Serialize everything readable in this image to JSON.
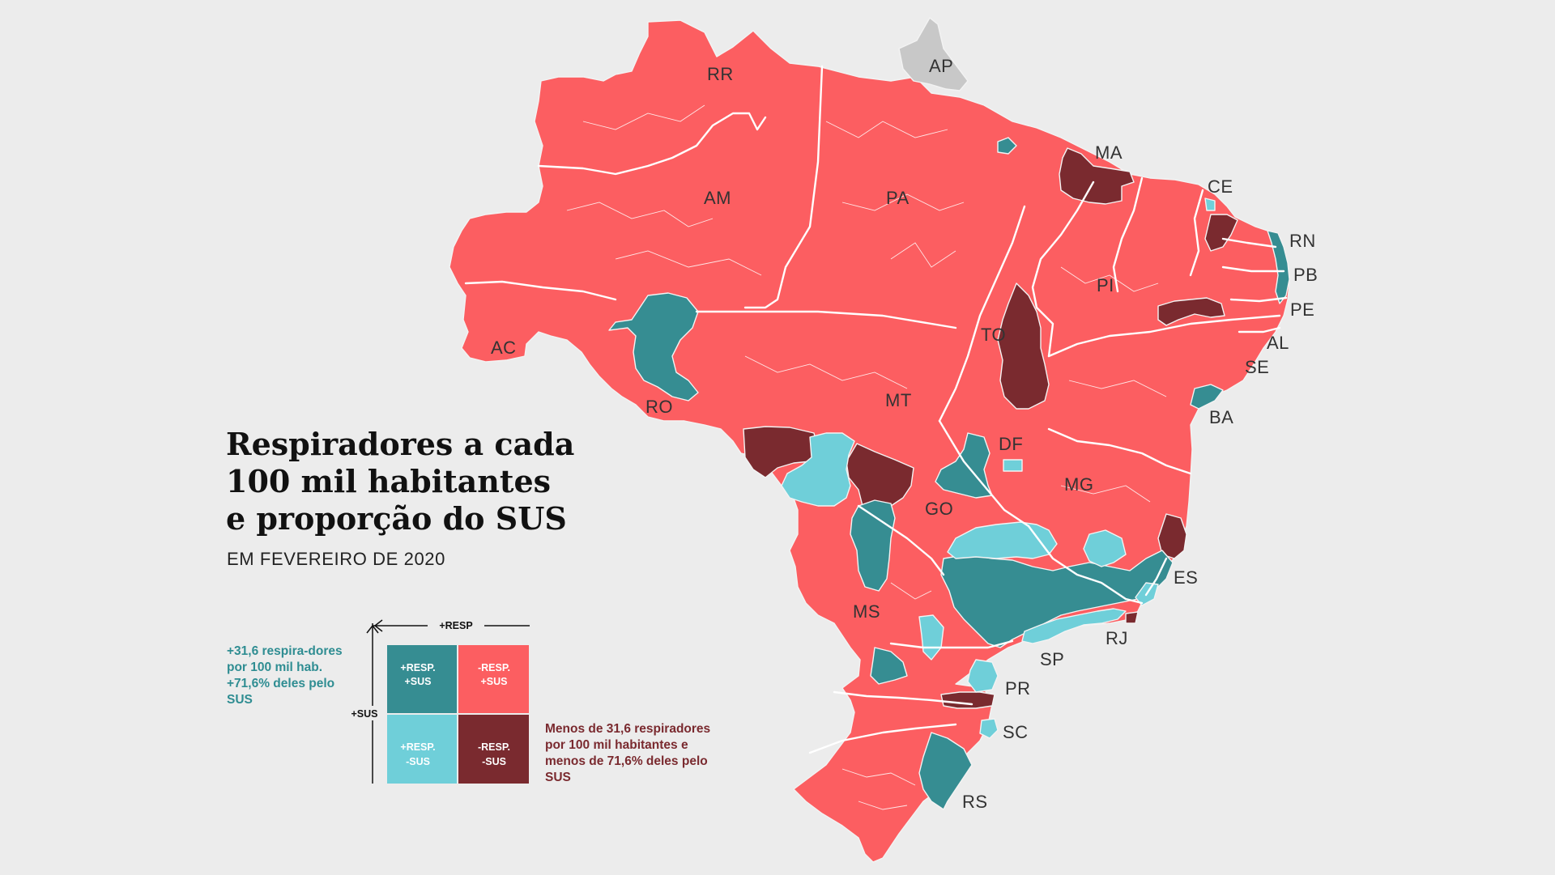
{
  "title_lines": [
    "Respiradores a cada",
    "100 mil habitantes",
    "e proporção do SUS"
  ],
  "subtitle": "EM FEVEREIRO DE 2020",
  "colors": {
    "background": "#ececec",
    "plus_resp_plus_sus": "#368d92",
    "minus_resp_plus_sus": "#fc5e61",
    "plus_resp_minus_sus": "#6fcfd9",
    "minus_resp_minus_sus": "#7a2a2f",
    "no_data": "#c8c8c8"
  },
  "legend": {
    "axis_resp": "+RESP",
    "axis_sus": "+SUS",
    "cells": [
      {
        "id": "plus-resp-plus-sus",
        "line1": "+RESP.",
        "line2": "+SUS"
      },
      {
        "id": "minus-resp-plus-sus",
        "line1": "-RESP.",
        "line2": "+SUS"
      },
      {
        "id": "plus-resp-minus-sus",
        "line1": "+RESP.",
        "line2": "-SUS"
      },
      {
        "id": "minus-resp-minus-sus",
        "line1": "-RESP.",
        "line2": "-SUS"
      }
    ],
    "note_high": "+31,6 respira-dores por 100 mil hab. +71,6% deles pelo SUS",
    "note_low": "Menos de 31,6 respiradores por 100 mil habitantes e menos de 71,6% deles pelo SUS"
  },
  "states": [
    "RR",
    "AP",
    "MA",
    "CE",
    "AM",
    "PA",
    "RN",
    "PB",
    "PI",
    "PE",
    "AC",
    "TO",
    "AL",
    "SE",
    "RO",
    "MT",
    "BA",
    "DF",
    "MG",
    "GO",
    "ES",
    "MS",
    "RJ",
    "SP",
    "PR",
    "SC",
    "RS"
  ]
}
